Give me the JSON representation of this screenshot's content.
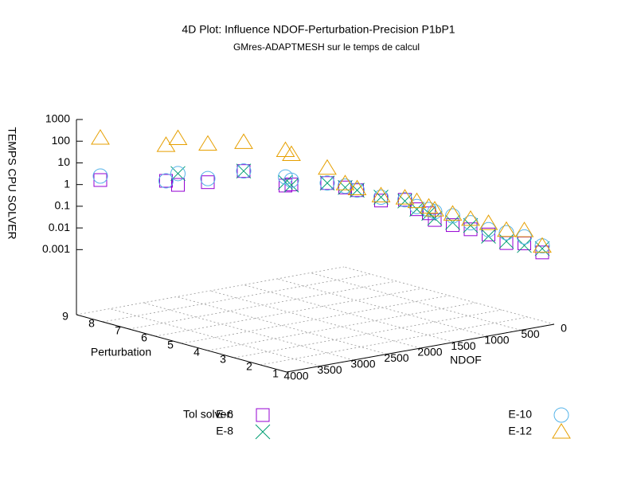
{
  "chart_data": {
    "type": "scatter3d",
    "title": "4D Plot: Influence NDOF-Perturbation-Precision P1bP1",
    "subtitle": "GMres-ADAPTMESH sur le temps de calcul",
    "xlabel": "NDOF",
    "ylabel": "Perturbation",
    "zlabel": "TEMPS CPU SOLVER",
    "xlim": [
      0,
      4000
    ],
    "xticks": [
      0,
      500,
      1000,
      1500,
      2000,
      2500,
      3000,
      3500,
      4000
    ],
    "ylim": [
      1,
      9
    ],
    "yticks": [
      1,
      2,
      3,
      4,
      5,
      6,
      7,
      8,
      9
    ],
    "zlim": [
      1e-06,
      1000
    ],
    "zticks": [
      0.001,
      0.01,
      0.1,
      1,
      10,
      100,
      1000
    ],
    "zlog": true,
    "grid": true,
    "legend_title": "Tol solver:",
    "x": [
      3800,
      3250,
      3150,
      2900,
      2600,
      2250,
      2200,
      1900,
      1750,
      1650,
      1450,
      1250,
      1150,
      1050,
      1000,
      850,
      700,
      550,
      400,
      250,
      100
    ],
    "y": [
      8.6,
      7.5,
      7.3,
      6.8,
      6.2,
      5.5,
      5.4,
      4.8,
      4.5,
      4.3,
      3.9,
      3.5,
      3.3,
      3.1,
      3,
      2.7,
      2.4,
      2.1,
      1.8,
      1.5,
      1.2
    ],
    "series": [
      {
        "name": "E-6",
        "color": "#9400d3",
        "marker": "square",
        "values": [
          1.7,
          1.8,
          1.2,
          1.7,
          6,
          1.4,
          1.6,
          2,
          1.3,
          1,
          0.35,
          0.4,
          0.15,
          0.1,
          0.05,
          0.03,
          0.02,
          0.012,
          0.005,
          0.005,
          0.002
        ]
      },
      {
        "name": "E-8",
        "color": "#009e73",
        "marker": "cross",
        "values": [
          null,
          null,
          4,
          null,
          6,
          2,
          1.5,
          2,
          1.3,
          1,
          0.5,
          0.35,
          0.15,
          0.1,
          0.06,
          0.04,
          0.03,
          0.01,
          0.006,
          0.004,
          0.003
        ]
      },
      {
        "name": "E-10",
        "color": "#56b4e9",
        "marker": "circle",
        "values": [
          2.6,
          1.8,
          4,
          2.5,
          6,
          3.5,
          2.5,
          2,
          1.5,
          1,
          0.5,
          0.4,
          0.2,
          0.15,
          0.12,
          0.08,
          0.04,
          0.02,
          0.015,
          0.01,
          0.004
        ]
      },
      {
        "name": "E-12",
        "color": "#e69f00",
        "marker": "triangle",
        "values": [
          150,
          80,
          170,
          100,
          130,
          60,
          40,
          10,
          2,
          1.2,
          0.6,
          0.5,
          0.35,
          0.2,
          0.15,
          0.1,
          0.06,
          0.04,
          0.02,
          0.02,
          0.004
        ]
      }
    ]
  }
}
